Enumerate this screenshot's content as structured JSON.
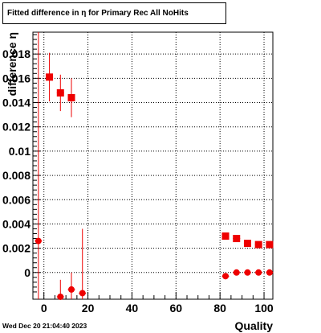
{
  "chart_data": {
    "type": "scatter",
    "title": "Fitted difference in η for Primary Rec All NoHits",
    "xlabel": "Quality",
    "ylabel": "difference η",
    "xlim": [
      -5,
      104
    ],
    "ylim": [
      -0.0022,
      0.0198
    ],
    "x_ticks": [
      0,
      20,
      40,
      60,
      80,
      100
    ],
    "y_ticks": [
      0,
      0.002,
      0.004,
      0.006,
      0.008,
      0.01,
      0.012,
      0.014,
      0.016,
      0.018
    ],
    "x_tick_labels": [
      "0",
      "20",
      "40",
      "60",
      "80",
      "100"
    ],
    "y_tick_labels": [
      "0",
      "0.002",
      "0.004",
      "0.006",
      "0.008",
      "0.01",
      "0.012",
      "0.014",
      "0.016",
      "0.018"
    ],
    "grid": true,
    "color": "#ee0000",
    "series": [
      {
        "marker": "square",
        "points": [
          {
            "x": 2.5,
            "y": 0.0161,
            "err": 0.002
          },
          {
            "x": 7.5,
            "y": 0.0148,
            "err": 0.0015
          },
          {
            "x": 12.5,
            "y": 0.0144,
            "err": 0.0016
          },
          {
            "x": 82.5,
            "y": 0.003,
            "err": 0
          },
          {
            "x": 87.5,
            "y": 0.0028,
            "err": 0
          },
          {
            "x": 92.5,
            "y": 0.0024,
            "err": 0
          },
          {
            "x": 97.5,
            "y": 0.0023,
            "err": 0
          },
          {
            "x": 102.5,
            "y": 0.0023,
            "err": 0
          }
        ]
      },
      {
        "marker": "circle",
        "points": [
          {
            "x": -2.5,
            "y": 0.0026,
            "err": 0.03
          },
          {
            "x": 7.5,
            "y": -0.002,
            "err": 0.0014
          },
          {
            "x": 12.5,
            "y": -0.0014,
            "err": 0.0014
          },
          {
            "x": 17.5,
            "y": -0.0017,
            "err": 0.0053
          },
          {
            "x": 82.5,
            "y": -0.0003,
            "err": 0
          },
          {
            "x": 87.5,
            "y": 0.0,
            "err": 0
          },
          {
            "x": 92.5,
            "y": 0.0,
            "err": 0
          },
          {
            "x": 97.5,
            "y": 0.0,
            "err": 0
          },
          {
            "x": 102.5,
            "y": 0.0,
            "err": 0
          }
        ]
      }
    ]
  },
  "footer": {
    "date": "Wed Dec 20 21:04:40 2023"
  }
}
